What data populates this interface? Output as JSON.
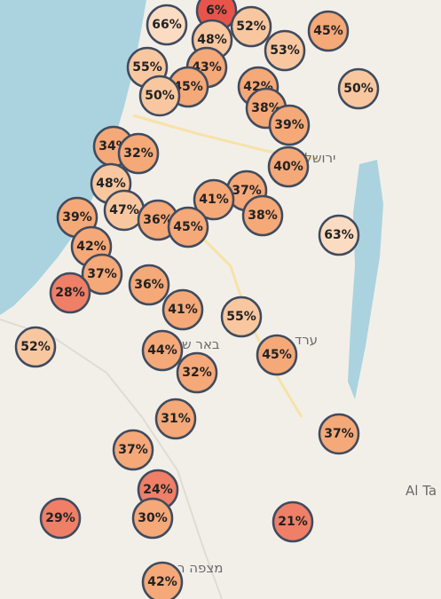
{
  "markers": [
    "66%",
    "6%",
    "52%",
    "48%",
    "45%",
    "53%",
    "55%",
    "43%",
    "45%",
    "50%",
    "42%",
    "50%",
    "38%",
    "39%",
    "34%",
    "32%",
    "40%",
    "48%",
    "37%",
    "41%",
    "38%",
    "39%",
    "47%",
    "36%",
    "45%",
    "63%",
    "42%",
    "37%",
    "36%",
    "28%",
    "41%",
    "55%",
    "52%",
    "44%",
    "45%",
    "32%",
    "31%",
    "37%",
    "37%",
    "24%",
    "29%",
    "30%",
    "21%",
    "42%"
  ],
  "places": [
    "ירושלי",
    "באר ש",
    "ערד",
    "Al Ta",
    "מצפה ר"
  ]
}
